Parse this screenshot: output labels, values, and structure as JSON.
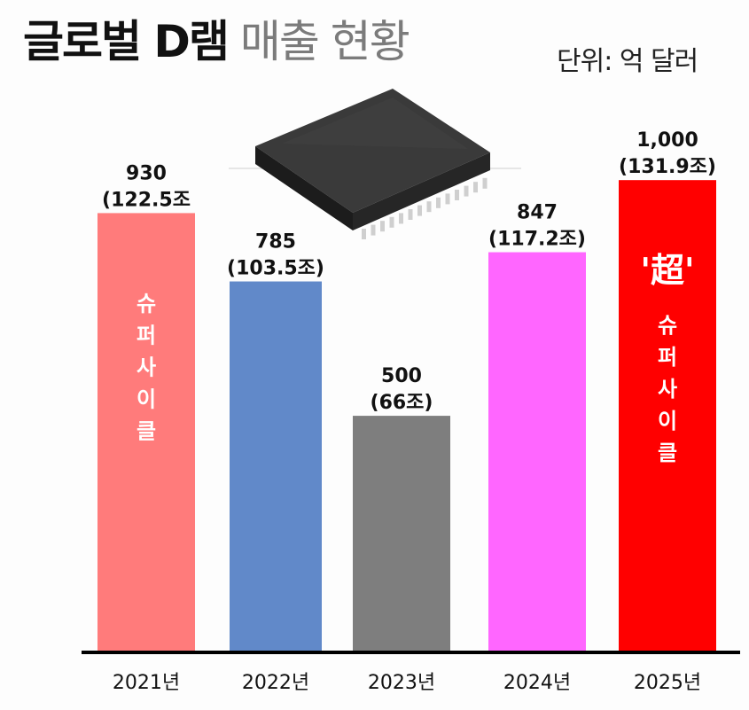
{
  "header": {
    "title_bold": "글로벌 D램",
    "title_light": "매출 현황",
    "unit": "단위: 억 달러"
  },
  "chart_data": {
    "type": "bar",
    "categories": [
      "2021년",
      "2022년",
      "2023년",
      "2024년",
      "2025년"
    ],
    "values": [
      930,
      785,
      500,
      847,
      1000
    ],
    "value_labels": [
      "930",
      "785",
      "500",
      "847",
      "1,000"
    ],
    "sub_labels": [
      "(122.5조",
      "(103.5조)",
      "(66조)",
      "(117.2조)",
      "(131.9조)"
    ],
    "bar_colors": [
      "#ff7b7b",
      "#6189c9",
      "#7e7e7e",
      "#ff66ff",
      "#ff0000"
    ],
    "bar_annotations": [
      {
        "index": 0,
        "text": "슈퍼사이클",
        "prefix": ""
      },
      {
        "index": 4,
        "text": "슈퍼사이클",
        "prefix": "'超'"
      }
    ],
    "ylim": [
      0,
      1100
    ],
    "grid": false,
    "title": "글로벌 D램 매출 현황"
  }
}
